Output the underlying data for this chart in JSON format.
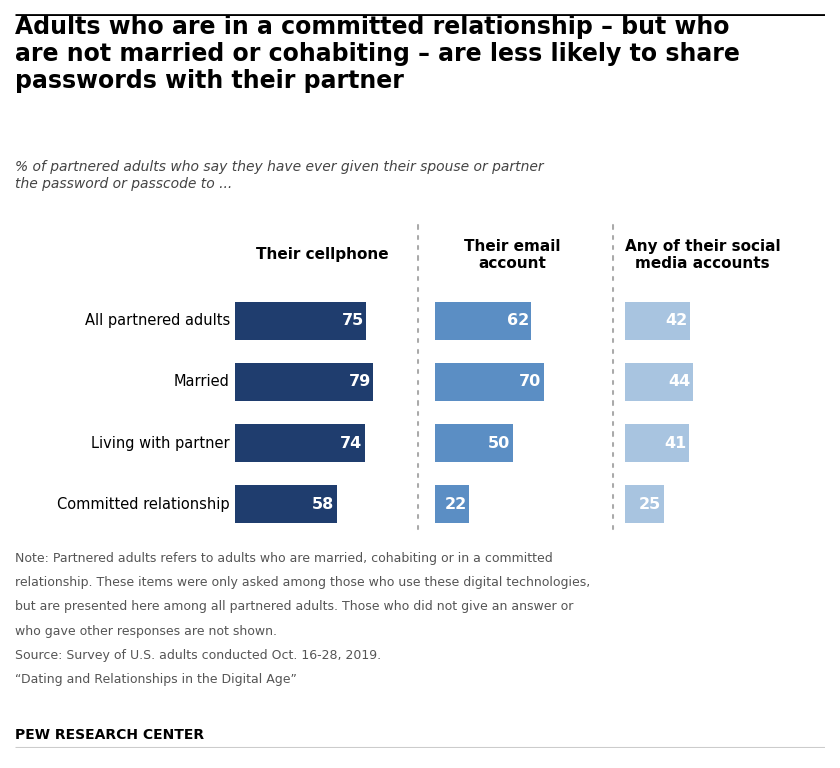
{
  "title": "Adults who are in a committed relationship – but who\nare not married or cohabiting – are less likely to share\npasswords with their partner",
  "subtitle": "% of partnered adults who say they have ever given their spouse or partner\nthe password or passcode to ...",
  "categories": [
    "All partnered adults",
    "Married",
    "Living with partner",
    "Committed relationship"
  ],
  "col_headers": [
    "Their cellphone",
    "Their email\naccount",
    "Any of their social\nmedia accounts"
  ],
  "values": {
    "cellphone": [
      75,
      79,
      74,
      58
    ],
    "email": [
      62,
      70,
      50,
      22
    ],
    "social": [
      42,
      44,
      41,
      25
    ]
  },
  "colors": {
    "cellphone": "#1f3d6e",
    "email": "#5b8ec4",
    "social": "#a8c4e0"
  },
  "note_lines": [
    "Note: Partnered adults refers to adults who are married, cohabiting or in a committed",
    "relationship. These items were only asked among those who use these digital technologies,",
    "but are presented here among all partnered adults. Those who did not give an answer or",
    "who gave other responses are not shown.",
    "Source: Survey of U.S. adults conducted Oct. 16-28, 2019.",
    "“Dating and Relationships in the Digital Age”"
  ],
  "source_bold": "PEW RESEARCH CENTER",
  "background_color": "#ffffff",
  "text_color": "#000000",
  "separator_color": "#aaaaaa"
}
